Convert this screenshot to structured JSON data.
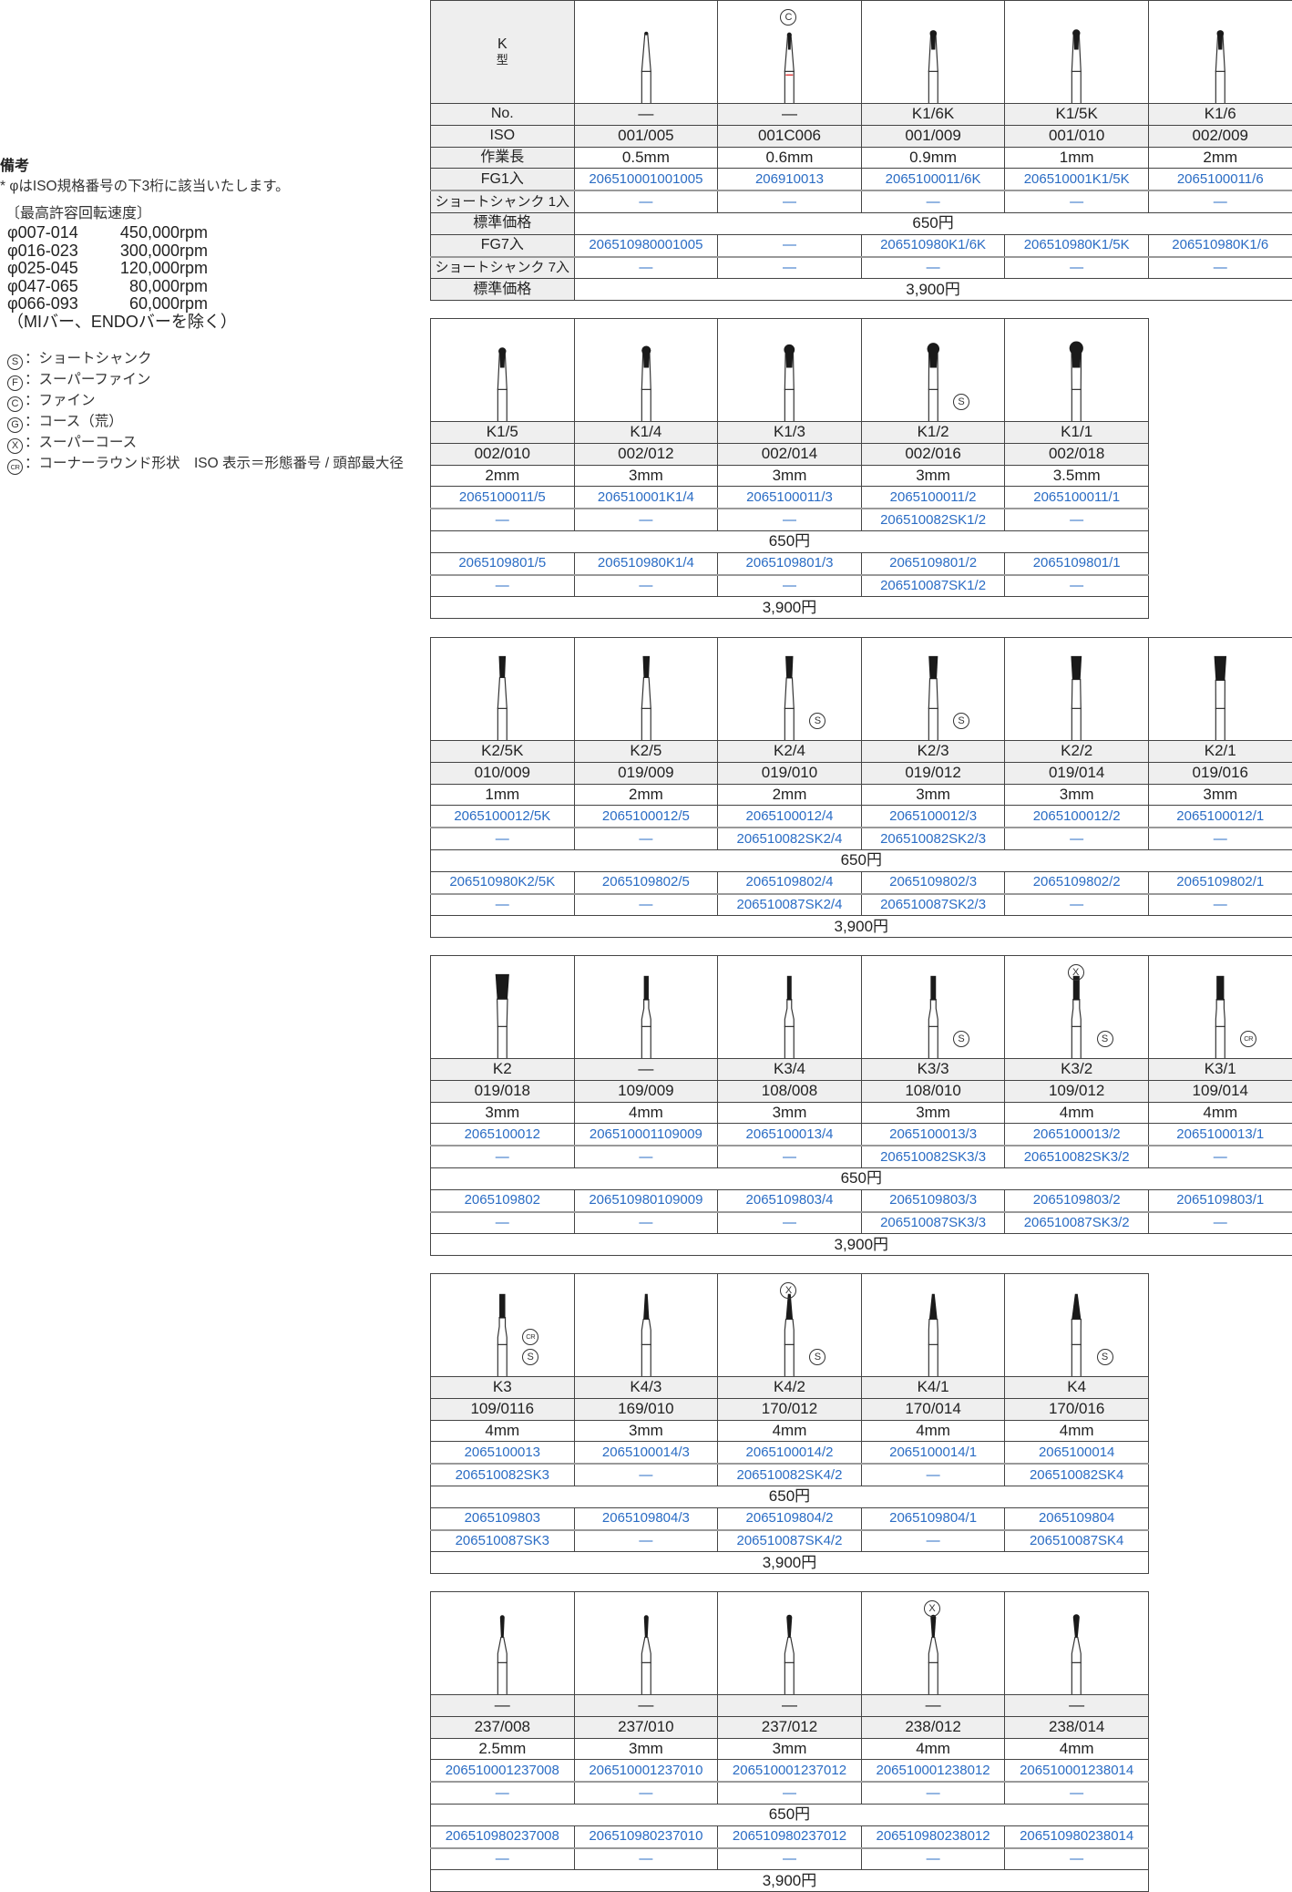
{
  "notes": {
    "title": "備考",
    "iso_note": "* φはISO規格番号の下3桁に該当いたします。",
    "speed_title": "〔最高許容回転速度〕",
    "speeds": [
      {
        "range": "φ007-014",
        "rpm": "450,000rpm"
      },
      {
        "range": "φ016-023",
        "rpm": "300,000rpm"
      },
      {
        "range": "φ025-045",
        "rpm": "120,000rpm"
      },
      {
        "range": "φ047-065",
        "rpm": "80,000rpm"
      },
      {
        "range": "φ066-093",
        "rpm": "60,000rpm"
      }
    ],
    "speed_exclusion": "（MIバー、ENDOバーを除く）",
    "legend": [
      {
        "mark": "S",
        "text": "：ショートシャンク"
      },
      {
        "mark": "F",
        "text": "：スーパーファイン"
      },
      {
        "mark": "C",
        "text": "：ファイン"
      },
      {
        "mark": "G",
        "text": "：コース（荒）"
      },
      {
        "mark": "X",
        "text": "：スーパーコース"
      },
      {
        "mark": "CR",
        "text": "：コーナーラウンド形状　ISO 表示＝形態番号 / 頭部最大径"
      }
    ]
  },
  "header": {
    "type_letter": "K",
    "type_label": "型",
    "row_labels": [
      "No.",
      "ISO",
      "作業長",
      "FG1入",
      "ショートシャンク 1入",
      "標準価格",
      "FG7入",
      "ショートシャンク 7入",
      "標準価格"
    ]
  },
  "colors": {
    "code_blue": "#2a6cc4",
    "row_gray": "#efefef",
    "band_red": "#e04040"
  },
  "tables": [
    {
      "price_1": "650円",
      "price_7": "3,900円",
      "items": [
        {
          "no": "—",
          "iso": "001/005",
          "length": "0.5mm",
          "fg1": "206510001001005",
          "short1": "—",
          "fg7": "206510980001005",
          "short7": "—",
          "shape": "taper-fine",
          "marks_top": [],
          "marks_side": []
        },
        {
          "no": "—",
          "iso": "001C006",
          "length": "0.6mm",
          "fg1": "206910013",
          "short1": "—",
          "fg7": "—",
          "short7": "—",
          "shape": "round",
          "band": "red",
          "marks_top": [
            "C"
          ],
          "marks_side": []
        },
        {
          "no": "K1/6K",
          "iso": "001/009",
          "length": "0.9mm",
          "fg1": "2065100011/6K",
          "short1": "—",
          "fg7": "206510980K1/6K",
          "short7": "—",
          "shape": "round",
          "marks_top": [],
          "marks_side": []
        },
        {
          "no": "K1/5K",
          "iso": "001/010",
          "length": "1mm",
          "fg1": "206510001K1/5K",
          "short1": "—",
          "fg7": "206510980K1/5K",
          "short7": "—",
          "shape": "round",
          "marks_top": [],
          "marks_side": []
        },
        {
          "no": "K1/6",
          "iso": "002/009",
          "length": "2mm",
          "fg1": "2065100011/6",
          "short1": "—",
          "fg7": "206510980K1/6",
          "short7": "—",
          "shape": "round",
          "marks_top": [],
          "marks_side": []
        }
      ]
    },
    {
      "price_1": "650円",
      "price_7": "3,900円",
      "items": [
        {
          "no": "K1/5",
          "iso": "002/010",
          "length": "2mm",
          "fg1": "2065100011/5",
          "short1": "—",
          "fg7": "2065109801/5",
          "short7": "—",
          "shape": "round",
          "marks_top": [],
          "marks_side": []
        },
        {
          "no": "K1/4",
          "iso": "002/012",
          "length": "3mm",
          "fg1": "206510001K1/4",
          "short1": "—",
          "fg7": "206510980K1/4",
          "short7": "—",
          "shape": "round",
          "marks_top": [],
          "marks_side": []
        },
        {
          "no": "K1/3",
          "iso": "002/014",
          "length": "3mm",
          "fg1": "2065100011/3",
          "short1": "—",
          "fg7": "2065109801/3",
          "short7": "—",
          "shape": "round",
          "marks_top": [],
          "marks_side": []
        },
        {
          "no": "K1/2",
          "iso": "002/016",
          "length": "3mm",
          "fg1": "2065100011/2",
          "short1": "206510082SK1/2",
          "fg7": "2065109801/2",
          "short7": "206510087SK1/2",
          "shape": "round",
          "marks_top": [],
          "marks_side": [
            "S"
          ]
        },
        {
          "no": "K1/1",
          "iso": "002/018",
          "length": "3.5mm",
          "fg1": "2065100011/1",
          "short1": "—",
          "fg7": "2065109801/1",
          "short7": "—",
          "shape": "round",
          "marks_top": [],
          "marks_side": []
        }
      ]
    },
    {
      "price_1": "650円",
      "price_7": "3,900円",
      "items": [
        {
          "no": "K2/5K",
          "iso": "010/009",
          "length": "1mm",
          "fg1": "2065100012/5K",
          "short1": "—",
          "fg7": "206510980K2/5K",
          "short7": "—",
          "shape": "inverted-cone",
          "marks_top": [],
          "marks_side": []
        },
        {
          "no": "K2/5",
          "iso": "019/009",
          "length": "2mm",
          "fg1": "2065100012/5",
          "short1": "—",
          "fg7": "2065109802/5",
          "short7": "—",
          "shape": "inverted-cone",
          "marks_top": [],
          "marks_side": []
        },
        {
          "no": "K2/4",
          "iso": "019/010",
          "length": "2mm",
          "fg1": "2065100012/4",
          "short1": "206510082SK2/4",
          "fg7": "2065109802/4",
          "short7": "206510087SK2/4",
          "shape": "inverted-cone",
          "marks_top": [],
          "marks_side": [
            "S"
          ]
        },
        {
          "no": "K2/3",
          "iso": "019/012",
          "length": "3mm",
          "fg1": "2065100012/3",
          "short1": "206510082SK2/3",
          "fg7": "2065109802/3",
          "short7": "206510087SK2/3",
          "shape": "inverted-cone",
          "marks_top": [],
          "marks_side": [
            "S"
          ]
        },
        {
          "no": "K2/2",
          "iso": "019/014",
          "length": "3mm",
          "fg1": "2065100012/2",
          "short1": "—",
          "fg7": "2065109802/2",
          "short7": "—",
          "shape": "inverted-cone",
          "marks_top": [],
          "marks_side": []
        },
        {
          "no": "K2/1",
          "iso": "019/016",
          "length": "3mm",
          "fg1": "2065100012/1",
          "short1": "—",
          "fg7": "2065109802/1",
          "short7": "—",
          "shape": "inverted-cone",
          "marks_top": [],
          "marks_side": []
        }
      ]
    },
    {
      "price_1": "650円",
      "price_7": "3,900円",
      "items": [
        {
          "no": "K2",
          "iso": "019/018",
          "length": "3mm",
          "fg1": "2065100012",
          "short1": "—",
          "fg7": "2065109802",
          "short7": "—",
          "shape": "inverted-cone",
          "marks_top": [],
          "marks_side": []
        },
        {
          "no": "—",
          "iso": "109/009",
          "length": "4mm",
          "fg1": "206510001109009",
          "short1": "—",
          "fg7": "206510980109009",
          "short7": "—",
          "shape": "cylinder",
          "marks_top": [],
          "marks_side": []
        },
        {
          "no": "K3/4",
          "iso": "108/008",
          "length": "3mm",
          "fg1": "2065100013/4",
          "short1": "—",
          "fg7": "2065109803/4",
          "short7": "—",
          "shape": "cylinder",
          "marks_top": [],
          "marks_side": []
        },
        {
          "no": "K3/3",
          "iso": "108/010",
          "length": "3mm",
          "fg1": "2065100013/3",
          "short1": "206510082SK3/3",
          "fg7": "2065109803/3",
          "short7": "206510087SK3/3",
          "shape": "cylinder",
          "marks_top": [],
          "marks_side": [
            "S"
          ]
        },
        {
          "no": "K3/2",
          "iso": "109/012",
          "length": "4mm",
          "fg1": "2065100013/2",
          "short1": "206510082SK3/2",
          "fg7": "2065109803/2",
          "short7": "206510087SK3/2",
          "shape": "cylinder",
          "marks_top": [
            "X"
          ],
          "marks_side": [
            "S"
          ]
        },
        {
          "no": "K3/1",
          "iso": "109/014",
          "length": "4mm",
          "fg1": "2065100013/1",
          "short1": "—",
          "fg7": "2065109803/1",
          "short7": "—",
          "shape": "cylinder",
          "marks_top": [],
          "marks_side": [
            "CR"
          ]
        }
      ]
    },
    {
      "price_1": "650円",
      "price_7": "3,900円",
      "items": [
        {
          "no": "K3",
          "iso": "109/0116",
          "length": "4mm",
          "fg1": "2065100013",
          "short1": "206510082SK3",
          "fg7": "2065109803",
          "short7": "206510087SK3",
          "shape": "cylinder",
          "marks_top": [],
          "marks_side": [
            "CR",
            "S"
          ]
        },
        {
          "no": "K4/3",
          "iso": "169/010",
          "length": "3mm",
          "fg1": "2065100014/3",
          "short1": "—",
          "fg7": "2065109804/3",
          "short7": "—",
          "shape": "taper",
          "marks_top": [],
          "marks_side": []
        },
        {
          "no": "K4/2",
          "iso": "170/012",
          "length": "4mm",
          "fg1": "2065100014/2",
          "short1": "206510082SK4/2",
          "fg7": "2065109804/2",
          "short7": "206510087SK4/2",
          "shape": "taper",
          "marks_top": [
            "X"
          ],
          "marks_side": [
            "S"
          ]
        },
        {
          "no": "K4/1",
          "iso": "170/014",
          "length": "4mm",
          "fg1": "2065100014/1",
          "short1": "—",
          "fg7": "2065109804/1",
          "short7": "—",
          "shape": "taper",
          "marks_top": [],
          "marks_side": []
        },
        {
          "no": "K4",
          "iso": "170/016",
          "length": "4mm",
          "fg1": "2065100014",
          "short1": "206510082SK4",
          "fg7": "2065109804",
          "short7": "206510087SK4",
          "shape": "taper",
          "marks_top": [],
          "marks_side": [
            "S"
          ]
        }
      ]
    },
    {
      "price_1": "650円",
      "price_7": "3,900円",
      "items": [
        {
          "no": "—",
          "iso": "237/008",
          "length": "2.5mm",
          "fg1": "206510001237008",
          "short1": "—",
          "fg7": "206510980237008",
          "short7": "—",
          "shape": "pear",
          "marks_top": [],
          "marks_side": []
        },
        {
          "no": "—",
          "iso": "237/010",
          "length": "3mm",
          "fg1": "206510001237010",
          "short1": "—",
          "fg7": "206510980237010",
          "short7": "—",
          "shape": "pear",
          "marks_top": [],
          "marks_side": []
        },
        {
          "no": "—",
          "iso": "237/012",
          "length": "3mm",
          "fg1": "206510001237012",
          "short1": "—",
          "fg7": "206510980237012",
          "short7": "—",
          "shape": "pear",
          "marks_top": [],
          "marks_side": []
        },
        {
          "no": "—",
          "iso": "238/012",
          "length": "4mm",
          "fg1": "206510001238012",
          "short1": "—",
          "fg7": "206510980238012",
          "short7": "—",
          "shape": "pear",
          "marks_top": [
            "X"
          ],
          "marks_side": []
        },
        {
          "no": "—",
          "iso": "238/014",
          "length": "4mm",
          "fg1": "206510001238014",
          "short1": "—",
          "fg7": "206510980238014",
          "short7": "—",
          "shape": "pear",
          "marks_top": [],
          "marks_side": []
        }
      ]
    }
  ]
}
